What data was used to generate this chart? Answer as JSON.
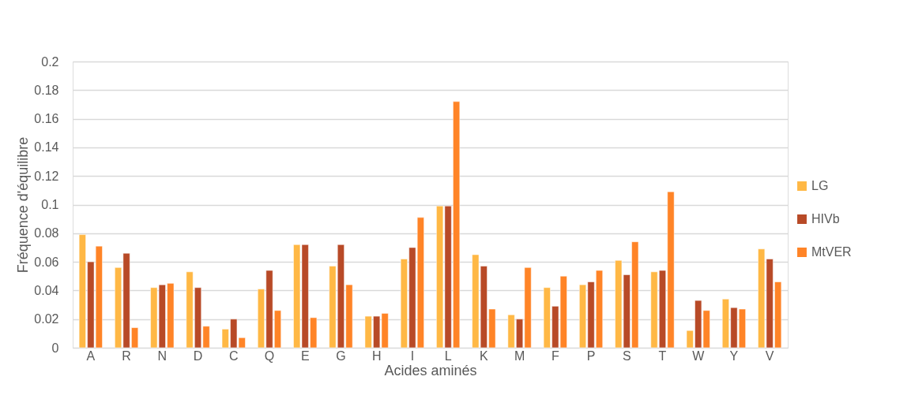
{
  "chart_data": {
    "type": "bar",
    "xlabel": "Acides aminés",
    "ylabel": "Fréquence d'équilibre",
    "categories": [
      "A",
      "R",
      "N",
      "D",
      "C",
      "Q",
      "E",
      "G",
      "H",
      "I",
      "L",
      "K",
      "M",
      "F",
      "P",
      "S",
      "T",
      "W",
      "Y",
      "V"
    ],
    "series": [
      {
        "name": "LG",
        "color": "#ffb845",
        "values": [
          0.079,
          0.056,
          0.042,
          0.053,
          0.013,
          0.041,
          0.072,
          0.057,
          0.022,
          0.062,
          0.099,
          0.065,
          0.023,
          0.042,
          0.044,
          0.061,
          0.053,
          0.012,
          0.034,
          0.069
        ]
      },
      {
        "name": "HIVb",
        "color": "#b84a27",
        "values": [
          0.06,
          0.066,
          0.044,
          0.042,
          0.02,
          0.054,
          0.072,
          0.072,
          0.022,
          0.07,
          0.099,
          0.057,
          0.02,
          0.029,
          0.046,
          0.051,
          0.054,
          0.033,
          0.028,
          0.062
        ]
      },
      {
        "name": "MtVER",
        "color": "#ff8427",
        "values": [
          0.071,
          0.014,
          0.045,
          0.015,
          0.007,
          0.026,
          0.021,
          0.044,
          0.024,
          0.091,
          0.172,
          0.027,
          0.056,
          0.05,
          0.054,
          0.074,
          0.109,
          0.026,
          0.027,
          0.046
        ]
      }
    ],
    "ylim": [
      0,
      0.2
    ],
    "yticks": [
      0,
      0.02,
      0.04,
      0.06,
      0.08,
      0.1,
      0.12,
      0.14,
      0.16,
      0.18,
      0.2
    ],
    "grid": "y",
    "legend": "right"
  }
}
